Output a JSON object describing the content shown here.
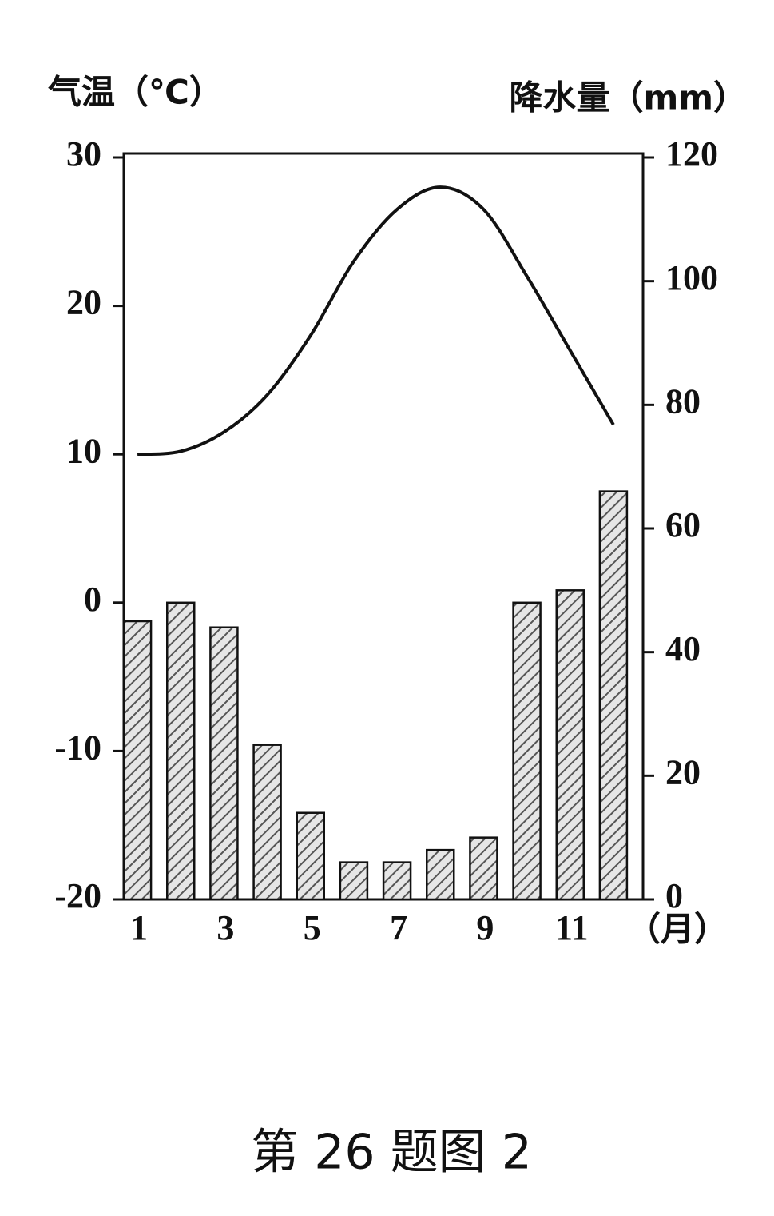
{
  "chart_data": {
    "type": "combo",
    "caption": "第 26 题图 2",
    "ylabel": "气温（℃）",
    "y2label": "降水量（mm）",
    "xlabel": "（月）",
    "categories": [
      1,
      null,
      3,
      null,
      5,
      null,
      7,
      null,
      9,
      null,
      11,
      null
    ],
    "series": [
      {
        "type": "line",
        "color": "#111111",
        "values": [
          10,
          10.2,
          11.5,
          14,
          18,
          23,
          26.5,
          28,
          26.5,
          22,
          17,
          12
        ]
      },
      {
        "type": "bar",
        "axis": "y2",
        "color": "#555555",
        "values": [
          45,
          48,
          44,
          25,
          14,
          6,
          6,
          8,
          10,
          48,
          50,
          66
        ]
      }
    ],
    "ylim": [
      -20,
      30
    ],
    "yticks": [
      30,
      20,
      10,
      0,
      -10,
      -20
    ],
    "y2lim": [
      0,
      120
    ],
    "y2ticks": [
      120,
      100,
      80,
      60,
      40,
      20,
      0
    ]
  }
}
